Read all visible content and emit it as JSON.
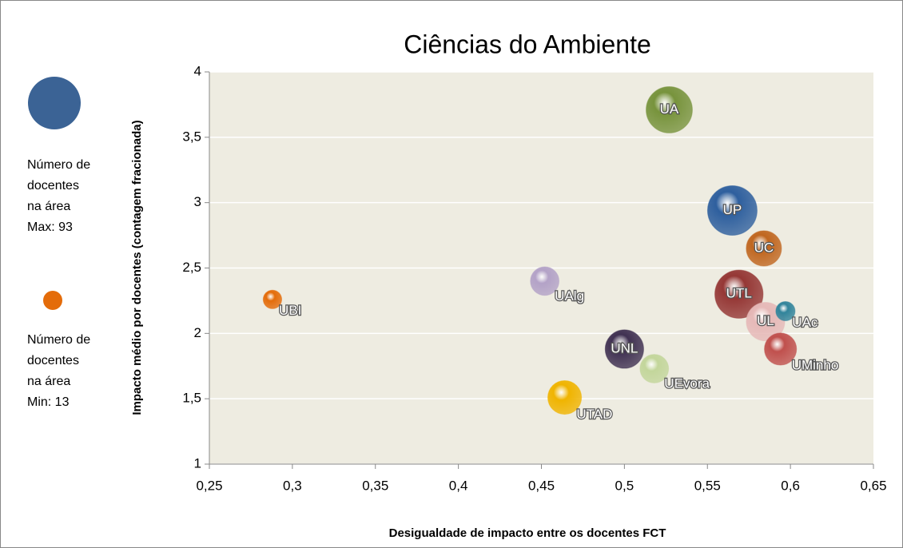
{
  "chart_data": {
    "type": "bubble",
    "title": "Ciências do Ambiente",
    "x_label": "Desigualdade de impacto entre os docentes FCT",
    "y_label": "Impacto  médio por docentes (contagem fracionada)",
    "legend_max": [
      "Número de",
      "docentes",
      "na área",
      "Max: 93"
    ],
    "legend_min": [
      "Número de",
      "docentes",
      "na área",
      "Min: 13"
    ],
    "legend_max_color": "#3b6395",
    "legend_min_color": "#e46c0a",
    "background": "#eeece1",
    "grid": true,
    "xlim": [
      0.25,
      0.65
    ],
    "xticks": [
      {
        "value": 0.25,
        "label": "0,25"
      },
      {
        "value": 0.3,
        "label": "0,3"
      },
      {
        "value": 0.35,
        "label": "0,35"
      },
      {
        "value": 0.4,
        "label": "0,4"
      },
      {
        "value": 0.45,
        "label": "0,45"
      },
      {
        "value": 0.5,
        "label": "0,5"
      },
      {
        "value": 0.55,
        "label": "0,55"
      },
      {
        "value": 0.6,
        "label": "0,6"
      },
      {
        "value": 0.65,
        "label": "0,65"
      }
    ],
    "ylim": [
      1,
      4
    ],
    "yticks": [
      1,
      {
        "value": 1.5,
        "label": "1,5"
      },
      2,
      {
        "value": 2.5,
        "label": "2,5"
      },
      3,
      {
        "value": 3.5,
        "label": "3,5"
      },
      4
    ],
    "points": [
      {
        "name": "UA",
        "x": 0.527,
        "y": 3.71,
        "size": 81,
        "color": "#77933c"
      },
      {
        "name": "UP",
        "x": 0.565,
        "y": 2.94,
        "size": 93,
        "color": "#2e5f9e"
      },
      {
        "name": "UC",
        "x": 0.584,
        "y": 2.65,
        "size": 47,
        "color": "#c0661f"
      },
      {
        "name": "UTL",
        "x": 0.569,
        "y": 2.3,
        "size": 88,
        "color": "#953735"
      },
      {
        "name": "UL",
        "x": 0.585,
        "y": 2.09,
        "size": 56,
        "color": "#e6b9b8"
      },
      {
        "name": "UAc",
        "x": 0.597,
        "y": 2.17,
        "size": 14,
        "color": "#31849b"
      },
      {
        "name": "UMinho",
        "x": 0.594,
        "y": 1.88,
        "size": 39,
        "color": "#c0504d"
      },
      {
        "name": "UNL",
        "x": 0.5,
        "y": 1.88,
        "size": 56,
        "color": "#403152"
      },
      {
        "name": "UEvora",
        "x": 0.518,
        "y": 1.73,
        "size": 31,
        "color": "#c3d69b"
      },
      {
        "name": "UTAD",
        "x": 0.464,
        "y": 1.51,
        "size": 43,
        "color": "#f0b400"
      },
      {
        "name": "UAlg",
        "x": 0.452,
        "y": 2.4,
        "size": 31,
        "color": "#b3a2c7"
      },
      {
        "name": "UBI",
        "x": 0.288,
        "y": 2.26,
        "size": 13,
        "color": "#e46c0a"
      }
    ]
  }
}
